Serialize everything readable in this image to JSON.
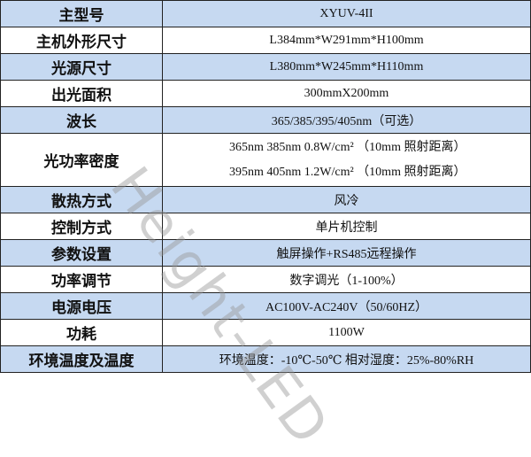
{
  "rows": [
    {
      "key": "主型号",
      "value": "XYUV-4II"
    },
    {
      "key": "主机外形尺寸",
      "value": "L384mm*W291mm*H100mm"
    },
    {
      "key": "光源尺寸",
      "value": "L380mm*W245mm*H110mm"
    },
    {
      "key": "出光面积",
      "value": "300mmX200mm"
    },
    {
      "key": "波长",
      "value": "365/385/395/405nm（可选）"
    },
    {
      "key": "光功率密度",
      "lines": [
        "365nm 385nm  0.8W/cm² （10mm 照射距离）",
        "395nm 405nm  1.2W/cm² （10mm 照射距离）"
      ]
    },
    {
      "key": "散热方式",
      "value": "风冷"
    },
    {
      "key": "控制方式",
      "value": "单片机控制"
    },
    {
      "key": "参数设置",
      "value": "触屏操作+RS485远程操作"
    },
    {
      "key": "功率调节",
      "value": "数字调光（1-100%）"
    },
    {
      "key": "电源电压",
      "value": "AC100V-AC240V（50/60HZ）"
    },
    {
      "key": "功耗",
      "value": "1100W"
    },
    {
      "key": "环境温度及温度",
      "value": "环境温度：-10℃-50℃ 相对湿度：25%-80%RH"
    }
  ],
  "watermark": "Height-LED",
  "colors": {
    "header_blue": "#c6d9f1",
    "border": "#222222"
  }
}
